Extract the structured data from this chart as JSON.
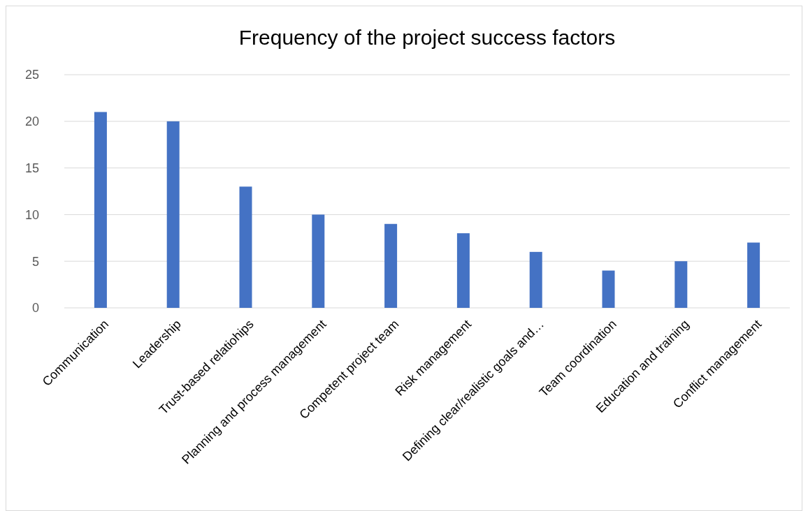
{
  "chart_data": {
    "type": "bar",
    "title": "Frequency of the project success factors",
    "categories": [
      "Communication",
      "Leadership",
      "Trust-based relatiohips",
      "Planning and process management",
      "Competent project team",
      "Risk management",
      "Defining clear/realistic goals and…",
      "Team coordination",
      "Education and training",
      "Conflict management"
    ],
    "values": [
      21,
      20,
      13,
      10,
      9,
      8,
      6,
      4,
      5,
      7
    ],
    "color": "#4472c4",
    "ylim": [
      0,
      25
    ],
    "yticks": [
      0,
      5,
      10,
      15,
      20,
      25
    ],
    "grid": "y"
  }
}
